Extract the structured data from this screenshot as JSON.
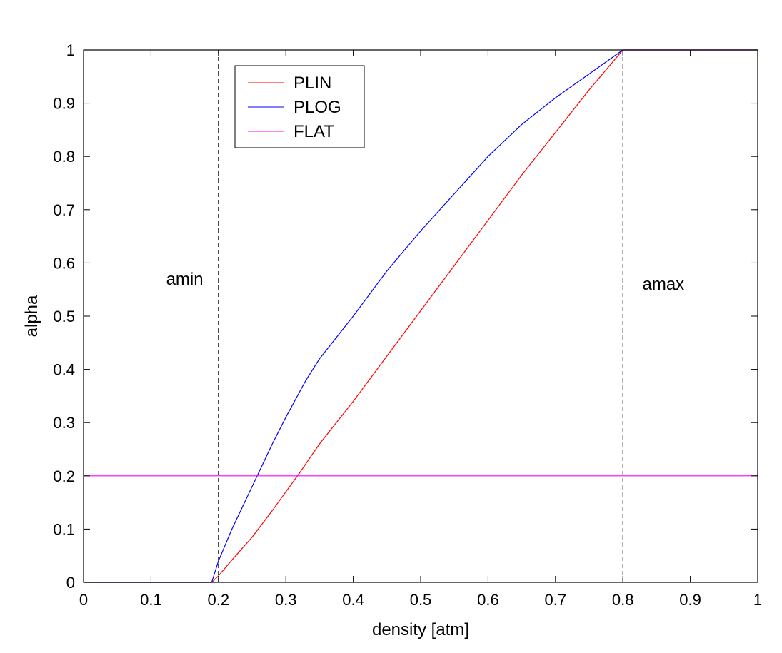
{
  "chart_data": {
    "type": "line",
    "title": "",
    "xlabel": "density [atm]",
    "ylabel": "alpha",
    "xlim": [
      0,
      1
    ],
    "ylim": [
      0,
      1
    ],
    "xticks": [
      0,
      0.1,
      0.2,
      0.3,
      0.4,
      0.5,
      0.6,
      0.7,
      0.8,
      0.9,
      1
    ],
    "yticks": [
      0,
      0.1,
      0.2,
      0.3,
      0.4,
      0.5,
      0.6,
      0.7,
      0.8,
      0.9,
      1
    ],
    "xtick_labels": [
      "0",
      "0.1",
      "0.2",
      "0.3",
      "0.4",
      "0.5",
      "0.6",
      "0.7",
      "0.8",
      "0.9",
      "1"
    ],
    "ytick_labels": [
      "0",
      "0.1",
      "0.2",
      "0.3",
      "0.4",
      "0.5",
      "0.6",
      "0.7",
      "0.8",
      "0.9",
      "1"
    ],
    "grid": false,
    "legend": {
      "placement": "top-left"
    },
    "series": [
      {
        "name": "PLIN",
        "color": "#ff0000",
        "x": [
          0,
          0.19,
          0.2,
          0.22,
          0.25,
          0.28,
          0.3,
          0.32,
          0.35,
          0.4,
          0.45,
          0.5,
          0.55,
          0.6,
          0.65,
          0.7,
          0.75,
          0.8,
          0.85,
          0.9,
          0.95,
          1
        ],
        "y": [
          0,
          0,
          0.012,
          0.042,
          0.085,
          0.135,
          0.17,
          0.205,
          0.26,
          0.34,
          0.425,
          0.51,
          0.595,
          0.68,
          0.765,
          0.845,
          0.925,
          1,
          1,
          1,
          1,
          1
        ]
      },
      {
        "name": "PLOG",
        "color": "#0000ff",
        "x": [
          0,
          0.19,
          0.2,
          0.22,
          0.25,
          0.28,
          0.3,
          0.33,
          0.35,
          0.4,
          0.45,
          0.5,
          0.55,
          0.6,
          0.65,
          0.7,
          0.75,
          0.8,
          0.85,
          0.9,
          0.95,
          1
        ],
        "y": [
          0,
          0,
          0.04,
          0.1,
          0.18,
          0.26,
          0.31,
          0.38,
          0.42,
          0.5,
          0.585,
          0.66,
          0.73,
          0.8,
          0.86,
          0.91,
          0.955,
          1,
          1,
          1,
          1,
          1
        ]
      },
      {
        "name": "FLAT",
        "color": "#ff00ff",
        "x": [
          0,
          1
        ],
        "y": [
          0.2,
          0.2
        ]
      }
    ],
    "vlines": [
      {
        "x": 0.2,
        "style": "dashed",
        "color": "#000000"
      },
      {
        "x": 0.8,
        "style": "dashed",
        "color": "#000000"
      }
    ],
    "annotations": [
      {
        "text": "amin",
        "x": 0.15,
        "y": 0.57
      },
      {
        "text": "amax",
        "x": 0.86,
        "y": 0.56
      }
    ]
  }
}
